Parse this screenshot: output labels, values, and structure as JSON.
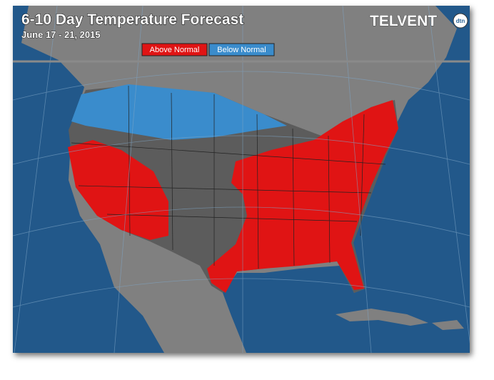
{
  "header": {
    "title": "6-10 Day Temperature Forecast",
    "subtitle": "June 17 - 21, 2015",
    "logo": "TELVENT",
    "logo_badge": "dtn"
  },
  "legend": {
    "items": [
      {
        "label": "Above Normal",
        "color": "#e01414"
      },
      {
        "label": "Below Normal",
        "color": "#3a8ccc"
      }
    ]
  }
}
